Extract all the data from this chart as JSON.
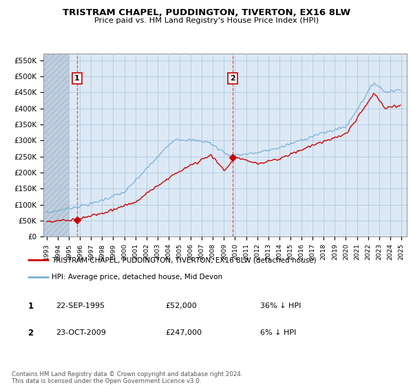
{
  "title": "TRISTRAM CHAPEL, PUDDINGTON, TIVERTON, EX16 8LW",
  "subtitle": "Price paid vs. HM Land Registry's House Price Index (HPI)",
  "ylabel_ticks": [
    "£0",
    "£50K",
    "£100K",
    "£150K",
    "£200K",
    "£250K",
    "£300K",
    "£350K",
    "£400K",
    "£450K",
    "£500K",
    "£550K"
  ],
  "ytick_values": [
    0,
    50000,
    100000,
    150000,
    200000,
    250000,
    300000,
    350000,
    400000,
    450000,
    500000,
    550000
  ],
  "ylim": [
    0,
    570000
  ],
  "xlim_start": 1992.7,
  "xlim_end": 2025.5,
  "sale1_x": 1995.73,
  "sale1_price": 52000,
  "sale1_label": "1",
  "sale2_x": 2009.81,
  "sale2_price": 247000,
  "sale2_label": "2",
  "legend_entry1": "TRISTRAM CHAPEL, PUDDINGTON, TIVERTON, EX16 8LW (detached house)",
  "legend_entry2": "HPI: Average price, detached house, Mid Devon",
  "table_date1": "22-SEP-1995",
  "table_price1": "£52,000",
  "table_hpi1": "36% ↓ HPI",
  "table_date2": "23-OCT-2009",
  "table_price2": "£247,000",
  "table_hpi2": "6% ↓ HPI",
  "footnote": "Contains HM Land Registry data © Crown copyright and database right 2024.\nThis data is licensed under the Open Government Licence v3.0.",
  "red_color": "#cc0000",
  "blue_color": "#7ab0d4",
  "bg_color": "#ffffff",
  "plot_bg_color": "#dce9f5",
  "grid_color": "#b0c8e0",
  "hatch_bg_color": "#c8d8e8"
}
